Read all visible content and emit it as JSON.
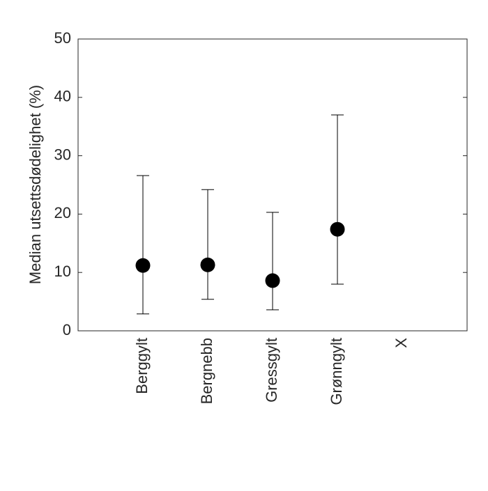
{
  "chart_data": {
    "type": "errorbar",
    "ylabel": "Median utsettsdødelighet (%)",
    "categories": [
      "Berggylt",
      "Bergnebb",
      "Gressgylt",
      "Grønngylt",
      "X"
    ],
    "values": [
      11.2,
      11.3,
      8.6,
      17.4,
      null
    ],
    "lower": [
      2.9,
      5.4,
      3.6,
      8.0,
      null
    ],
    "upper": [
      26.6,
      24.2,
      20.3,
      37.0,
      null
    ],
    "color": "#000000",
    "ylim": [
      0,
      50
    ],
    "yticks": [
      0,
      10,
      20,
      30,
      40,
      50
    ],
    "grid": false
  }
}
